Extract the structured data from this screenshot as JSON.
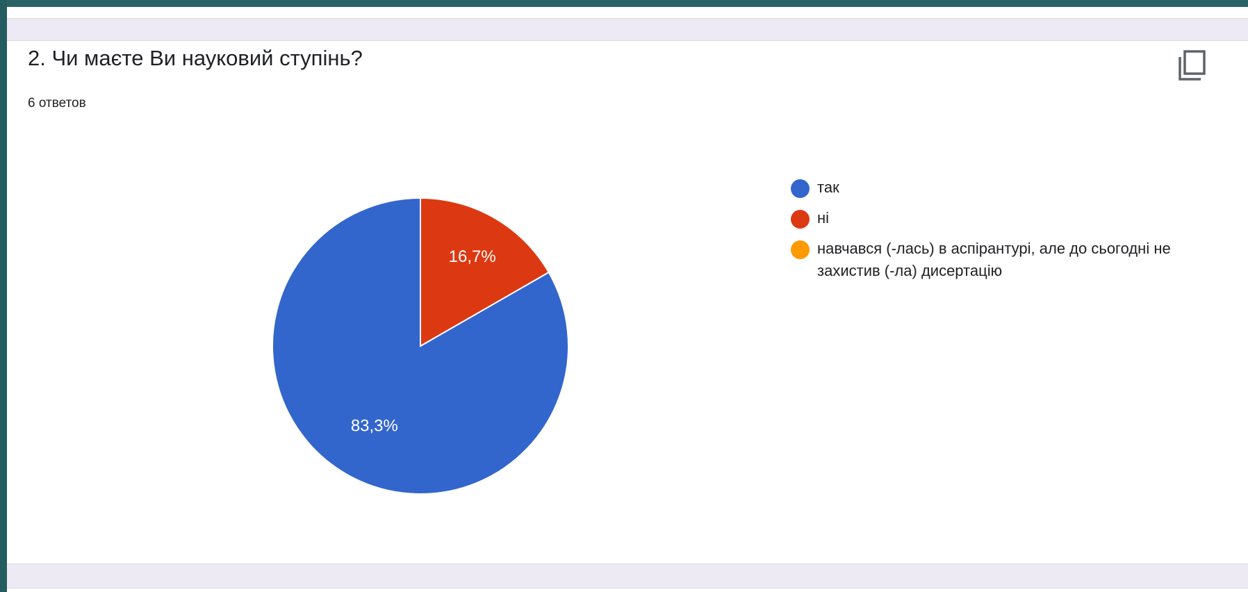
{
  "question": {
    "title": "2. Чи маєте Ви науковий ступінь?",
    "responses": "6 ответов",
    "copy_icon": "copy-icon"
  },
  "chart_data": {
    "type": "pie",
    "title": "2. Чи маєте Ви науковий ступінь?",
    "total_responses": 6,
    "categories": [
      "так",
      "ні",
      "навчався (-лась) в аспірантурі, але до сьогодні не захистив (-ла) дисертацію"
    ],
    "values": [
      83.3,
      16.7,
      0
    ],
    "value_labels": [
      "83,3%",
      "16,7%",
      ""
    ],
    "colors": [
      "#3366cc",
      "#dc3912",
      "#ff9900"
    ],
    "legend": "right"
  }
}
